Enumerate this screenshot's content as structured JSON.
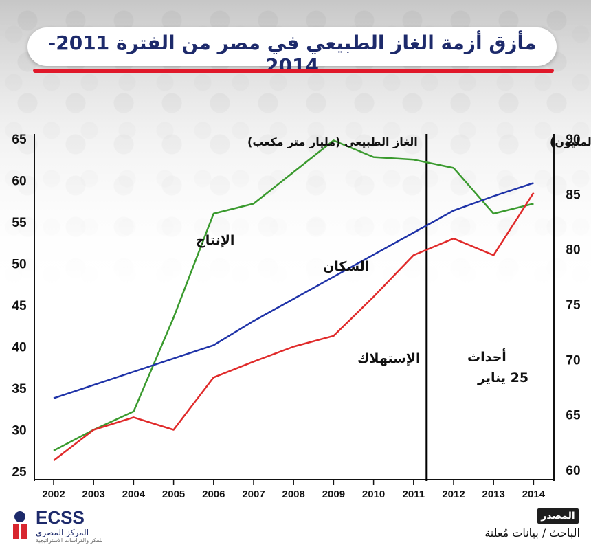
{
  "title": "مأزق أزمة الغاز الطبيعي في مصر من الفترة 2011-2014",
  "source": {
    "badge": "المصدر",
    "text": "الباحث / بيانات مُعلنة"
  },
  "logo": {
    "name": "ECSS",
    "subtitle": "المركز المصري",
    "tagline": "للفكر والدراسات الاستراتيجية"
  },
  "chart_data": {
    "type": "line",
    "x": [
      2002,
      2003,
      2004,
      2005,
      2006,
      2007,
      2008,
      2009,
      2010,
      2011,
      2012,
      2013,
      2014
    ],
    "x_ticks": [
      "2002",
      "2003",
      "2004",
      "2005",
      "2006",
      "2007",
      "2008",
      "2009",
      "2010",
      "2011",
      "2012",
      "2013",
      "2014"
    ],
    "left_axis": {
      "label": "الغاز الطبيعي (مليار متر مكعب)",
      "ylim": [
        25,
        65
      ],
      "ticks": [
        25,
        30,
        35,
        40,
        45,
        50,
        55,
        60,
        65
      ]
    },
    "right_axis": {
      "label": "السكان (بالمليون)",
      "ylim": [
        60,
        90
      ],
      "ticks": [
        60,
        65,
        70,
        75,
        80,
        85,
        90
      ]
    },
    "series": [
      {
        "name": "الإنتاج",
        "axis": "left",
        "color": "#3a9a2e",
        "points": [
          [
            2002,
            27.5
          ],
          [
            2003,
            30.0
          ],
          [
            2004,
            32.2
          ],
          [
            2005,
            43.5
          ],
          [
            2006,
            56.0
          ],
          [
            2007,
            57.2
          ],
          [
            2008,
            61.0
          ],
          [
            2009,
            64.8
          ],
          [
            2010,
            62.8
          ],
          [
            2011,
            62.5
          ],
          [
            2012,
            61.5
          ],
          [
            2013,
            56.0
          ],
          [
            2014,
            57.2
          ]
        ]
      },
      {
        "name": "السكان",
        "axis": "right",
        "color": "#1f33a8",
        "points": [
          [
            2002,
            66.5
          ],
          [
            2003,
            67.7
          ],
          [
            2004,
            68.9
          ],
          [
            2005,
            70.1
          ],
          [
            2006,
            71.3
          ],
          [
            2007,
            73.5
          ],
          [
            2008,
            75.5
          ],
          [
            2009,
            77.5
          ],
          [
            2010,
            79.5
          ],
          [
            2011,
            81.5
          ],
          [
            2012,
            83.5
          ],
          [
            2013,
            84.8
          ],
          [
            2014,
            86.0
          ]
        ]
      },
      {
        "name": "الإستهلاك",
        "axis": "left",
        "color": "#e02a2a",
        "points": [
          [
            2002,
            26.3
          ],
          [
            2003,
            30.0
          ],
          [
            2004,
            31.5
          ],
          [
            2005,
            30.0
          ],
          [
            2006,
            36.3
          ],
          [
            2007,
            38.2
          ],
          [
            2008,
            40.0
          ],
          [
            2009,
            41.3
          ],
          [
            2010,
            46.0
          ],
          [
            2011,
            51.0
          ],
          [
            2012,
            53.0
          ],
          [
            2013,
            51.0
          ],
          [
            2014,
            58.5
          ]
        ]
      }
    ],
    "annotations": [
      {
        "text": "أحداث",
        "x": 2011
      },
      {
        "text": "25 يناير",
        "x": 2011
      }
    ],
    "vline": {
      "x": 2011,
      "color": "#000000"
    }
  }
}
